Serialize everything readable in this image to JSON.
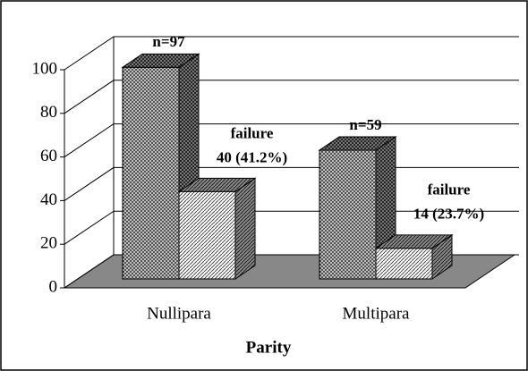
{
  "chart_data": {
    "type": "bar3d",
    "xlabel": "Parity",
    "categories": [
      "Nullipara",
      "Multipara"
    ],
    "series": [
      {
        "values": [
          97,
          59
        ],
        "value_labels": [
          "n=97",
          "n=59"
        ]
      },
      {
        "name": "failure",
        "values": [
          40,
          14
        ],
        "value_labels": [
          "40 (41.2%)",
          "14 (23.7%)"
        ]
      }
    ],
    "ylim": [
      0,
      100
    ],
    "yticks": [
      0,
      20,
      40,
      60,
      80,
      100
    ],
    "grid": true
  }
}
